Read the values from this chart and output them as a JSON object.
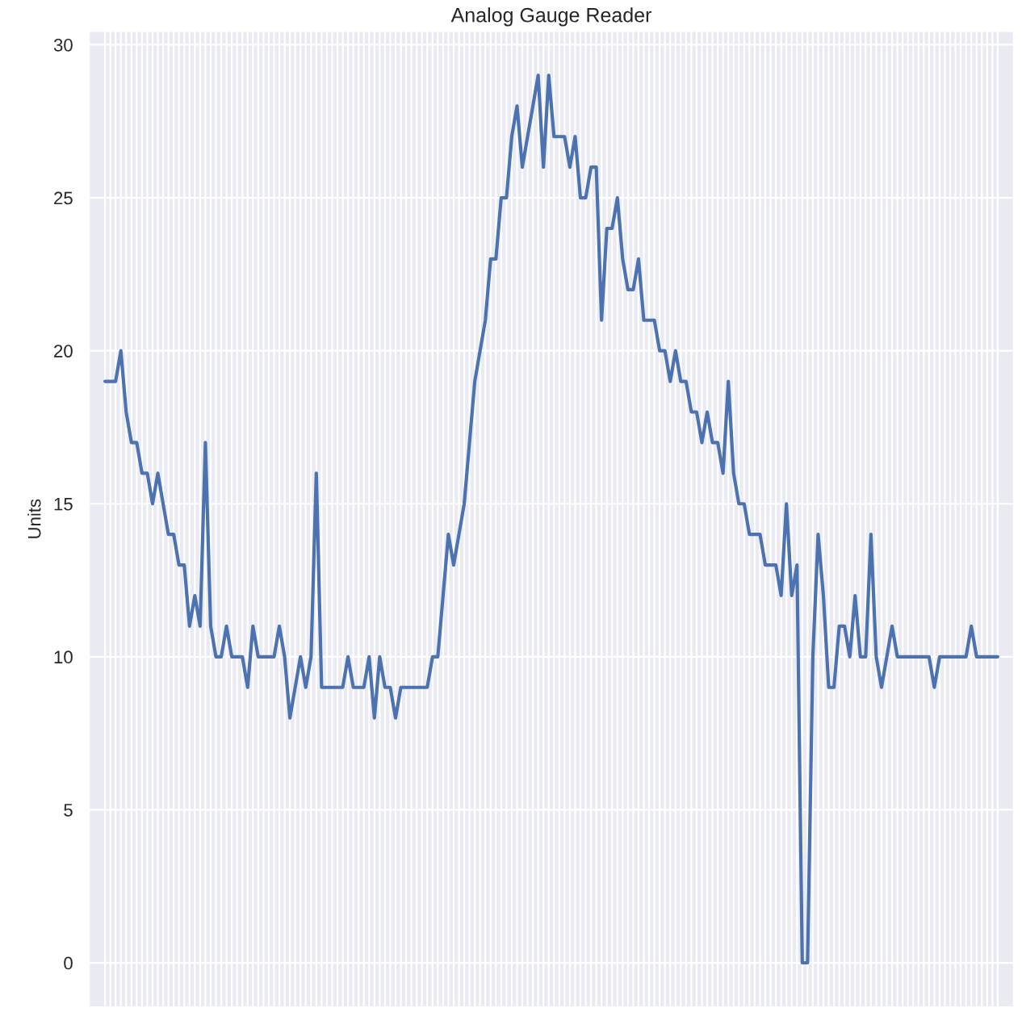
{
  "chart_data": {
    "type": "line",
    "title": "Analog Gauge Reader",
    "ylabel": "Units",
    "categories": [
      null,
      null,
      null,
      null,
      null,
      null,
      null,
      null,
      null,
      null,
      null,
      null,
      null,
      null,
      null,
      null,
      null,
      null,
      null,
      null,
      null,
      null,
      null,
      null,
      null,
      null,
      null,
      null,
      null,
      null,
      null,
      null,
      null,
      null,
      null,
      null,
      null,
      null,
      null,
      null,
      null,
      null,
      null,
      null,
      null,
      null,
      null,
      null,
      null,
      null,
      null,
      null,
      null,
      null,
      null,
      null,
      null,
      null,
      null,
      null,
      null,
      null,
      null,
      null,
      null,
      null,
      null,
      null,
      null,
      null,
      null,
      null,
      null,
      null,
      null,
      null,
      null,
      null,
      null,
      null,
      null,
      null,
      null,
      null,
      null,
      null,
      null,
      null,
      null,
      null,
      null,
      null,
      null,
      null,
      null,
      null,
      null,
      null,
      null,
      null,
      null,
      null,
      null,
      null,
      null,
      null,
      null,
      null,
      null,
      null,
      null,
      null,
      null,
      null,
      null,
      null,
      null,
      null,
      null,
      null,
      null,
      null,
      null,
      null,
      null,
      null,
      null,
      null,
      null,
      null,
      null,
      null,
      null,
      null,
      null,
      null,
      null,
      null,
      null,
      null,
      null,
      null,
      null,
      null,
      null,
      null,
      null,
      null,
      null,
      null,
      null,
      null,
      null,
      null,
      null,
      null,
      null,
      null,
      null,
      null,
      null,
      null,
      null,
      null,
      null,
      null,
      null,
      null,
      null,
      null
    ],
    "series": [
      {
        "color": "#4c72b0",
        "values": [
          19,
          19,
          19,
          20,
          18,
          17,
          17,
          16,
          16,
          15,
          16,
          15,
          14,
          14,
          13,
          13,
          11,
          12,
          11,
          17,
          11,
          10,
          10,
          11,
          10,
          10,
          10,
          9,
          11,
          10,
          10,
          10,
          10,
          11,
          10,
          8,
          9,
          10,
          9,
          10,
          16,
          9,
          9,
          9,
          9,
          9,
          10,
          9,
          9,
          9,
          10,
          8,
          10,
          9,
          9,
          8,
          9,
          9,
          9,
          9,
          9,
          9,
          10,
          10,
          12,
          14,
          13,
          14,
          15,
          17,
          19,
          20,
          21,
          23,
          23,
          25,
          25,
          27,
          28,
          26,
          27,
          28,
          29,
          26,
          29,
          27,
          27,
          27,
          26,
          27,
          25,
          25,
          26,
          26,
          21,
          24,
          24,
          25,
          23,
          22,
          22,
          23,
          21,
          21,
          21,
          20,
          20,
          19,
          20,
          19,
          19,
          18,
          18,
          17,
          18,
          17,
          17,
          16,
          19,
          16,
          15,
          15,
          14,
          14,
          14,
          13,
          13,
          13,
          12,
          15,
          12,
          13,
          0,
          0,
          10,
          14,
          12,
          9,
          9,
          11,
          11,
          10,
          12,
          10,
          10,
          14,
          10,
          9,
          10,
          11,
          10,
          10,
          10,
          10,
          10,
          10,
          10,
          9,
          10,
          10,
          10,
          10,
          10,
          10,
          11,
          10,
          10,
          10,
          10,
          10
        ]
      }
    ],
    "ylim": [
      -1.45,
      30.45
    ],
    "yticks": [
      0,
      5,
      10,
      15,
      20,
      25,
      30
    ],
    "grid": true,
    "tick_labels": "y",
    "marker": "none",
    "line_style": "solid"
  }
}
